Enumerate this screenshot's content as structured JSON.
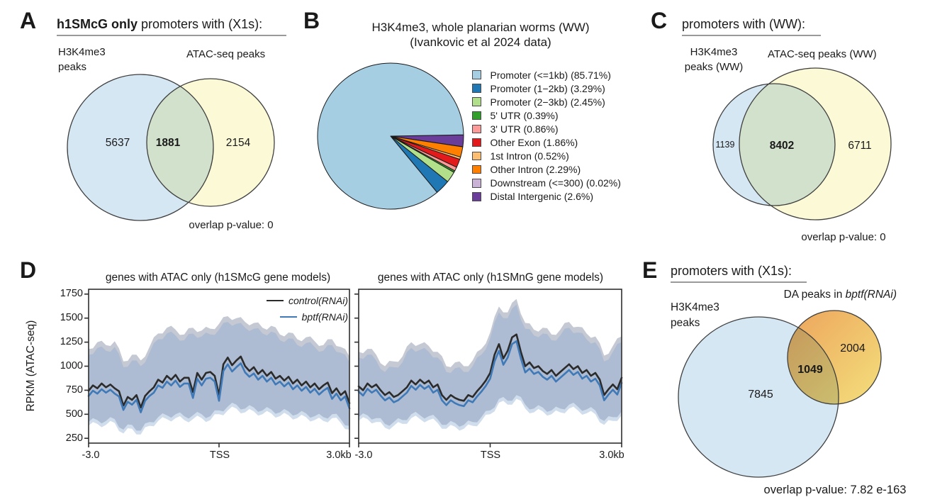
{
  "panels": {
    "a": "A",
    "b": "B",
    "c": "C",
    "d": "D",
    "e": "E"
  },
  "chart_data": [
    {
      "id": "venn-a",
      "type": "venn",
      "title_bold": "h1SMcG only",
      "title_rest": " promoters with (X1s):",
      "sets": [
        {
          "label_line1": "H3K4me3",
          "label_line2": "peaks",
          "value": "5637",
          "color": "#d6e7f4"
        },
        {
          "label": "ATAC-seq peaks",
          "value": "2154",
          "color": "#fbf9d6"
        }
      ],
      "overlap": "1881",
      "pvalue_text": "overlap p-value: 0"
    },
    {
      "id": "pie-b",
      "type": "pie",
      "title_line1": "H3K4me3, whole planarian worms (WW)",
      "title_line2": "(Ivankovic et al 2024 data)",
      "legend_position": "right",
      "slices": [
        {
          "label": "Promoter (<=1kb) (85.71%)",
          "pct": 85.71,
          "color": "#a6cee3"
        },
        {
          "label": "Promoter (1−2kb) (3.29%)",
          "pct": 3.29,
          "color": "#1f78b4"
        },
        {
          "label": "Promoter (2−3kb) (2.45%)",
          "pct": 2.45,
          "color": "#b2df8a"
        },
        {
          "label": "5' UTR (0.39%)",
          "pct": 0.39,
          "color": "#33a02c"
        },
        {
          "label": "3' UTR (0.86%)",
          "pct": 0.86,
          "color": "#fb9a99"
        },
        {
          "label": "Other Exon (1.86%)",
          "pct": 1.86,
          "color": "#e31a1c"
        },
        {
          "label": "1st Intron (0.52%)",
          "pct": 0.52,
          "color": "#fdbf6f"
        },
        {
          "label": "Other Intron (2.29%)",
          "pct": 2.29,
          "color": "#ff7f00"
        },
        {
          "label": "Downstream (<=300) (0.02%)",
          "pct": 0.02,
          "color": "#cab2d6"
        },
        {
          "label": "Distal Intergenic (2.6%)",
          "pct": 2.6,
          "color": "#6a3d9a"
        }
      ]
    },
    {
      "id": "venn-c",
      "type": "venn",
      "title": "promoters with (WW):",
      "sets": [
        {
          "label_line1": "H3K4me3",
          "label_line2": "peaks (WW)",
          "value": "1139",
          "color": "#d6e7f4"
        },
        {
          "label": "ATAC-seq peaks (WW)",
          "value": "6711",
          "color": "#fbf9d6"
        }
      ],
      "overlap": "8402",
      "pvalue_text": "overlap p-value: 0"
    },
    {
      "id": "profile-d1",
      "type": "line",
      "title": "genes with ATAC only (h1SMcG gene models)",
      "ylabel": "RPKM (ATAC-seq)",
      "ylim": [
        200,
        1800
      ],
      "yticks": [
        250,
        500,
        750,
        1000,
        1250,
        1500,
        1750
      ],
      "xticks": [
        "-3.0",
        "TSS",
        "3.0kb"
      ],
      "xticks_kb": [
        -3,
        0,
        3
      ],
      "x_start_kb": -3,
      "value_step_kb": 0.1,
      "band_step_kb": 0.2,
      "series": [
        {
          "name": "control(RNAi)",
          "color": "#2b2b2b",
          "values": [
            745,
            800,
            770,
            820,
            780,
            810,
            770,
            740,
            590,
            680,
            650,
            700,
            570,
            690,
            740,
            780,
            860,
            830,
            900,
            860,
            910,
            840,
            880,
            880,
            730,
            930,
            860,
            930,
            940,
            900,
            700,
            1020,
            1090,
            1010,
            1060,
            1100,
            1000,
            950,
            990,
            920,
            960,
            900,
            940,
            870,
            900,
            850,
            890,
            820,
            860,
            800,
            840,
            780,
            820,
            760,
            800,
            830,
            720,
            770,
            700,
            740,
            615
          ]
        },
        {
          "name": "bptf(RNAi)",
          "color": "#3f79b7",
          "values": [
            690,
            745,
            715,
            760,
            725,
            755,
            715,
            685,
            545,
            630,
            600,
            650,
            520,
            640,
            690,
            725,
            800,
            775,
            840,
            800,
            850,
            785,
            820,
            820,
            670,
            870,
            800,
            870,
            880,
            840,
            640,
            950,
            1020,
            945,
            990,
            1030,
            935,
            890,
            925,
            860,
            900,
            840,
            880,
            810,
            840,
            790,
            830,
            760,
            800,
            745,
            785,
            725,
            765,
            705,
            745,
            775,
            660,
            715,
            645,
            685,
            560
          ]
        }
      ],
      "bands": [
        {
          "series": "control(RNAi)",
          "fill": "#959cae",
          "opacity": 0.55,
          "upper": [
            1180,
            1250,
            1220,
            1260,
            1050,
            1120,
            1060,
            1200,
            1340,
            1400,
            1380,
            1330,
            1400,
            1370,
            1390,
            1440,
            1520,
            1500,
            1460,
            1450,
            1400,
            1420,
            1330,
            1350,
            1280,
            1300,
            1260,
            1220,
            1280,
            1200,
            1100
          ],
          "lower": [
            420,
            440,
            430,
            450,
            340,
            390,
            330,
            420,
            470,
            490,
            500,
            480,
            490,
            500,
            480,
            540,
            580,
            600,
            560,
            570,
            540,
            550,
            520,
            530,
            500,
            510,
            480,
            470,
            500,
            450,
            380
          ]
        },
        {
          "series": "bptf(RNAi)",
          "fill": "#8aa9d1",
          "opacity": 0.4,
          "upper": [
            1120,
            1190,
            1160,
            1200,
            990,
            1060,
            1000,
            1140,
            1280,
            1340,
            1320,
            1270,
            1340,
            1310,
            1330,
            1380,
            1460,
            1440,
            1400,
            1390,
            1340,
            1360,
            1270,
            1290,
            1220,
            1240,
            1200,
            1160,
            1220,
            1140,
            1040
          ],
          "lower": [
            380,
            400,
            390,
            410,
            300,
            350,
            290,
            380,
            430,
            450,
            460,
            440,
            450,
            460,
            440,
            500,
            540,
            560,
            520,
            530,
            500,
            510,
            480,
            490,
            460,
            470,
            440,
            430,
            460,
            410,
            340
          ]
        }
      ]
    },
    {
      "id": "profile-d2",
      "type": "line",
      "title": "genes with ATAC only (h1SMnG gene models)",
      "ylim": [
        200,
        1800
      ],
      "yticks": [
        250,
        500,
        750,
        1000,
        1250,
        1500,
        1750
      ],
      "xticks": [
        "-3.0",
        "TSS",
        "3.0kb"
      ],
      "xticks_kb": [
        -3,
        0,
        3
      ],
      "x_start_kb": -3,
      "value_step_kb": 0.1,
      "band_step_kb": 0.2,
      "series": [
        {
          "name": "control(RNAi)",
          "color": "#2b2b2b",
          "values": [
            790,
            750,
            820,
            780,
            810,
            750,
            700,
            730,
            680,
            700,
            740,
            780,
            850,
            810,
            860,
            820,
            850,
            780,
            810,
            700,
            650,
            700,
            670,
            650,
            640,
            700,
            680,
            740,
            790,
            850,
            930,
            1120,
            1230,
            1080,
            1160,
            1300,
            1330,
            1150,
            1000,
            1040,
            980,
            1000,
            950,
            920,
            960,
            900,
            940,
            980,
            1020,
            970,
            1000,
            930,
            960,
            900,
            930,
            860,
            700,
            760,
            810,
            760,
            880
          ]
        },
        {
          "name": "bptf(RNAi)",
          "color": "#3f79b7",
          "values": [
            735,
            695,
            765,
            725,
            755,
            695,
            645,
            675,
            625,
            645,
            685,
            725,
            795,
            755,
            805,
            765,
            795,
            725,
            755,
            645,
            595,
            645,
            615,
            595,
            585,
            645,
            625,
            685,
            735,
            795,
            870,
            1050,
            1160,
            1015,
            1090,
            1230,
            1260,
            1080,
            935,
            975,
            920,
            940,
            890,
            860,
            900,
            840,
            880,
            920,
            960,
            910,
            940,
            870,
            900,
            840,
            870,
            800,
            645,
            705,
            755,
            705,
            825
          ]
        }
      ],
      "bands": [
        {
          "series": "control(RNAi)",
          "fill": "#959cae",
          "opacity": 0.55,
          "upper": [
            1150,
            1180,
            1120,
            1000,
            1050,
            1100,
            1250,
            1230,
            1210,
            1150,
            1000,
            1040,
            1000,
            1060,
            1180,
            1350,
            1620,
            1560,
            1700,
            1450,
            1380,
            1400,
            1330,
            1380,
            1460,
            1410,
            1340,
            1310,
            1110,
            1210,
            1310
          ],
          "lower": [
            470,
            490,
            460,
            400,
            420,
            440,
            500,
            490,
            480,
            450,
            390,
            410,
            390,
            420,
            470,
            540,
            660,
            640,
            700,
            600,
            560,
            570,
            540,
            560,
            600,
            580,
            550,
            540,
            430,
            470,
            530
          ]
        },
        {
          "series": "bptf(RNAi)",
          "fill": "#8aa9d1",
          "opacity": 0.4,
          "upper": [
            1090,
            1120,
            1060,
            940,
            990,
            1040,
            1190,
            1170,
            1150,
            1090,
            940,
            980,
            940,
            1000,
            1120,
            1290,
            1560,
            1500,
            1640,
            1390,
            1320,
            1340,
            1270,
            1320,
            1400,
            1350,
            1280,
            1250,
            1050,
            1150,
            1250
          ],
          "lower": [
            430,
            450,
            420,
            360,
            380,
            400,
            460,
            450,
            440,
            410,
            350,
            370,
            350,
            380,
            430,
            500,
            620,
            600,
            660,
            560,
            520,
            530,
            500,
            520,
            560,
            540,
            510,
            500,
            390,
            430,
            490
          ]
        }
      ]
    },
    {
      "id": "venn-e",
      "type": "venn",
      "title": "promoters with (X1s):",
      "sets": [
        {
          "label_line1": "H3K4me3",
          "label_line2": "peaks",
          "value": "7845",
          "color": "#d6e7f4"
        },
        {
          "label_prefix": "DA peaks in ",
          "label_italic": "bptf(RNAi)",
          "value": "2004",
          "color_gradient": [
            "#eda45c",
            "#f3e07c"
          ]
        }
      ],
      "overlap": "1049",
      "pvalue_text": "overlap p-value: 7.82 e-163"
    }
  ]
}
